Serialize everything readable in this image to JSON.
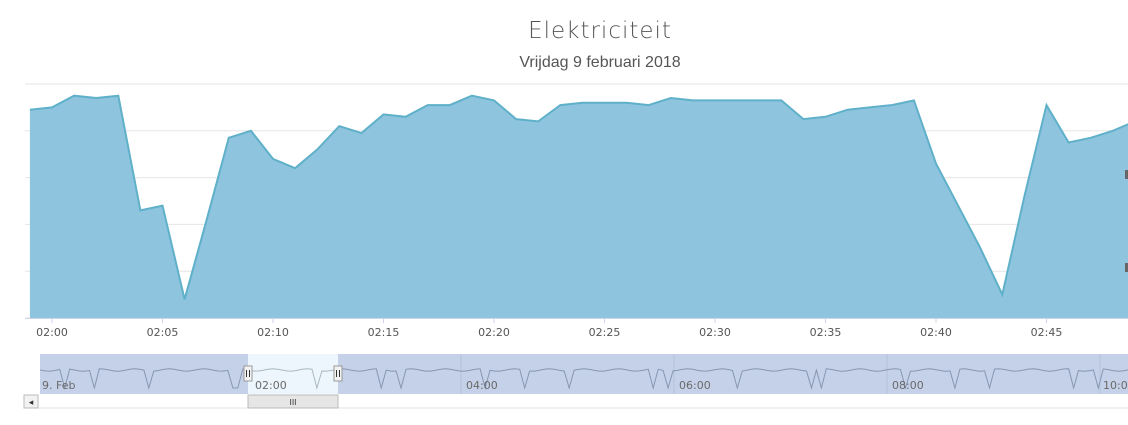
{
  "chart_data": {
    "type": "area",
    "title": "Elektriciteit",
    "subtitle": "Vrijdag 9 februari 2018",
    "x_start_label": "02:00",
    "x": [
      "01:59",
      "02:00",
      "02:01",
      "02:02",
      "02:03",
      "02:04",
      "02:05",
      "02:06",
      "02:07",
      "02:08",
      "02:09",
      "02:10",
      "02:11",
      "02:12",
      "02:13",
      "02:14",
      "02:15",
      "02:16",
      "02:17",
      "02:18",
      "02:19",
      "02:20",
      "02:21",
      "02:22",
      "02:23",
      "02:24",
      "02:25",
      "02:26",
      "02:27",
      "02:28",
      "02:29",
      "02:30",
      "02:31",
      "02:32",
      "02:33",
      "02:34",
      "02:35",
      "02:36",
      "02:37",
      "02:38",
      "02:39",
      "02:40",
      "02:41",
      "02:42",
      "02:43",
      "02:44",
      "02:45",
      "02:46",
      "02:47",
      "02:48",
      "02:49"
    ],
    "series": [
      {
        "values": [
          0.89,
          0.9,
          0.95,
          0.94,
          0.95,
          0.46,
          0.48,
          0.08,
          0.42,
          0.77,
          0.8,
          0.68,
          0.64,
          0.72,
          0.82,
          0.79,
          0.87,
          0.86,
          0.91,
          0.91,
          0.95,
          0.93,
          0.85,
          0.84,
          0.91,
          0.92,
          0.92,
          0.92,
          0.91,
          0.94,
          0.93,
          0.93,
          0.93,
          0.93,
          0.93,
          0.85,
          0.86,
          0.89,
          0.9,
          0.91,
          0.93,
          0.66,
          0.48,
          0.3,
          0.1,
          0.52,
          0.91,
          0.75,
          0.77,
          0.8,
          0.84
        ],
        "color": "#8fc4de"
      }
    ],
    "xticks": [
      "02:00",
      "02:05",
      "02:10",
      "02:15",
      "02:20",
      "02:25",
      "02:30",
      "02:35",
      "02:40",
      "02:45"
    ],
    "ylim": [
      0,
      1
    ],
    "grid": true,
    "legend": "none",
    "line_color": "#5fb0c9",
    "navigator": {
      "tick_labels": [
        "9. Feb",
        "02:00",
        "04:00",
        "06:00",
        "08:00",
        "10:0"
      ],
      "scroll_grip": "III",
      "left_arrow": "◂"
    }
  }
}
